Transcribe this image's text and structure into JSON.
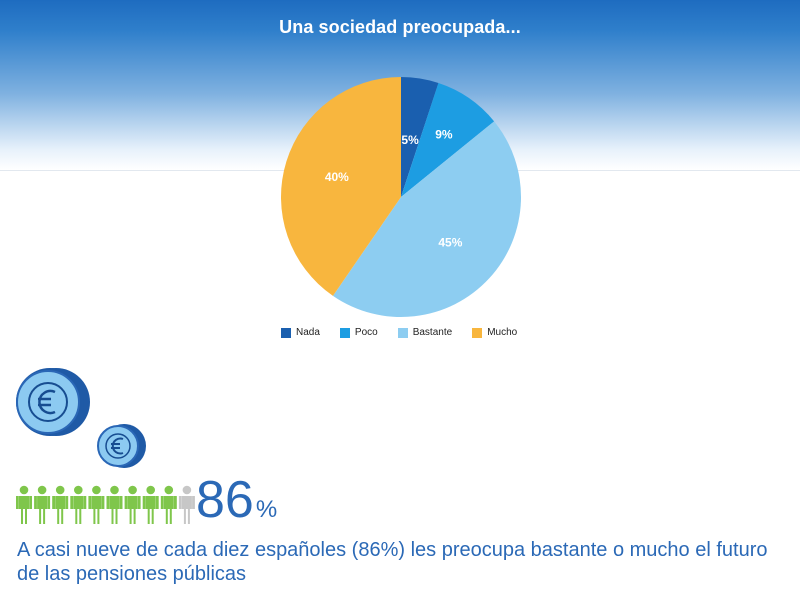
{
  "header": {
    "title": "Una sociedad preocupada..."
  },
  "chart_data": {
    "type": "pie",
    "title": "Una sociedad preocupada...",
    "categories": [
      "Nada",
      "Poco",
      "Bastante",
      "Mucho"
    ],
    "values": [
      5,
      9,
      45,
      40
    ],
    "labels": [
      "5%",
      "9%",
      "45%",
      "40%"
    ],
    "colors": [
      "#1a5faf",
      "#1d9de2",
      "#8dcdf1",
      "#f8b63e"
    ],
    "legend_placement": "bottom"
  },
  "legend": {
    "items": [
      "Nada",
      "Poco",
      "Bastante",
      "Mucho"
    ]
  },
  "infographic": {
    "icons": [
      "euro-coin-icon",
      "person-icon"
    ],
    "highlight_people": 9,
    "total_people": 10,
    "colors": {
      "highlight": "#7fc64b",
      "neutral": "#c7c7c7",
      "coin_face": "#8ccaf1",
      "coin_edge": "#1f5aa6",
      "text": "#2b69b6"
    },
    "stat_value": "86",
    "stat_unit": "%",
    "caption": "A casi nueve de cada diez españoles (86%) les preocupa bastante o mucho el futuro de las pensiones públicas"
  }
}
